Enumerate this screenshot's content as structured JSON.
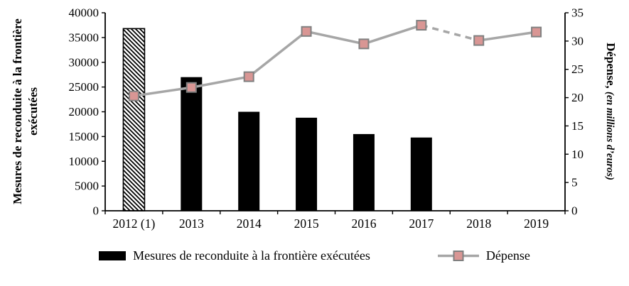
{
  "chart_data": {
    "type": "bar",
    "subtype": "combo-bar-line-dual-axis",
    "categories": [
      "2012 (1)",
      "2013",
      "2014",
      "2015",
      "2016",
      "2017",
      "2018",
      "2019"
    ],
    "series": [
      {
        "name": "Mesures de reconduite à la frontière exécutées",
        "type": "bar",
        "axis": "left",
        "values": [
          36800,
          27000,
          20000,
          18800,
          15500,
          14800,
          null,
          null
        ],
        "bar_styles": [
          "hatched",
          "solid",
          "solid",
          "solid",
          "solid",
          "solid",
          null,
          null
        ],
        "color": "#000000"
      },
      {
        "name": "Dépense",
        "type": "line",
        "axis": "right",
        "values": [
          20.3,
          21.8,
          23.7,
          31.7,
          29.5,
          32.8,
          30.1,
          31.6
        ],
        "segment_styles": [
          "solid",
          "solid",
          "solid",
          "solid",
          "solid",
          "dashed",
          "solid"
        ],
        "line_color": "#a6a6a6",
        "marker_fill": "#d99694",
        "marker_stroke": "#808080"
      }
    ],
    "left_axis": {
      "title": "Mesures de reconduite à la frontière exécutées",
      "min": 0,
      "max": 40000,
      "step": 5000
    },
    "right_axis": {
      "title_main": "Dépense,",
      "title_sub": "(en millions d’euros)",
      "min": 0,
      "max": 35,
      "step": 5
    },
    "grid": "off",
    "legend_position": "bottom",
    "legend": [
      {
        "label": "Mesures de reconduite à la frontière exécutées",
        "swatch": "bar"
      },
      {
        "label": "Dépense",
        "swatch": "line-marker"
      }
    ]
  }
}
